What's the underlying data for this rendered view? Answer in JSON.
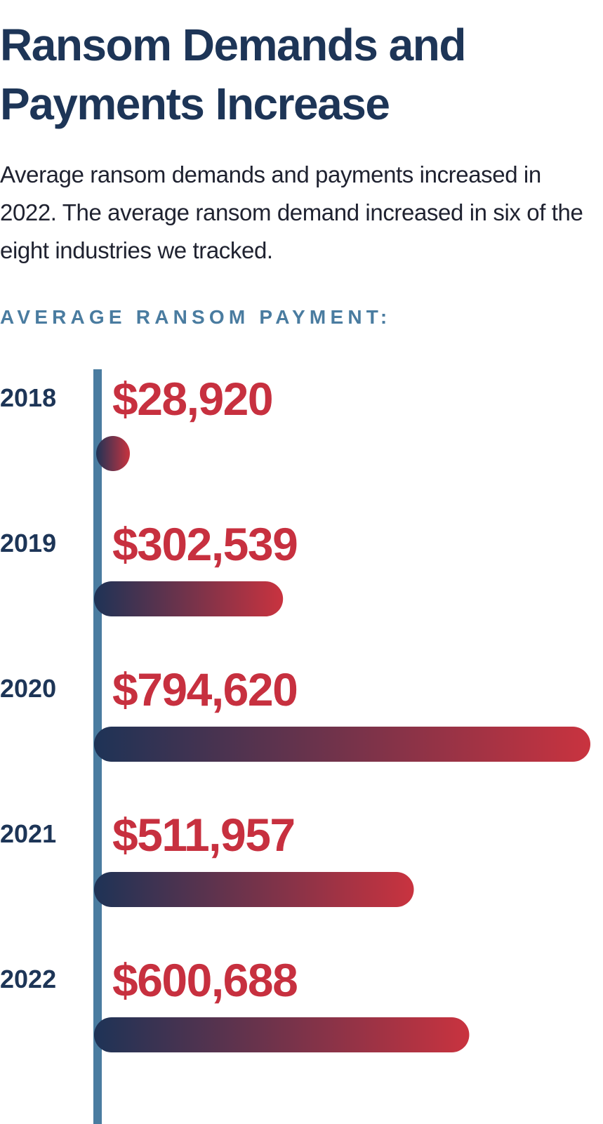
{
  "title": "Ransom Demands and Payments Increase",
  "intro": "Average ransom demands and payments increased in 2022. The average ransom demand increased in six of the eight industries we tracked.",
  "chart_data": {
    "type": "bar",
    "orientation": "horizontal",
    "title": "AVERAGE RANSOM PAYMENT:",
    "categories": [
      "2018",
      "2019",
      "2020",
      "2021",
      "2022"
    ],
    "values": [
      28920,
      302539,
      794620,
      511957,
      600688
    ],
    "value_labels": [
      "$28,920",
      "$302,539",
      "$794,620",
      "$511,957",
      "$600,688"
    ],
    "xlim": [
      0,
      794620
    ],
    "grid": false,
    "legend": "none"
  },
  "colors": {
    "title": "#1d3557",
    "heading": "#4a7ca0",
    "axis": "#4a7ca0",
    "value_text": "#c7303f",
    "bar_start": "#1e3356",
    "bar_end": "#c9333f",
    "year_text": "#1d3557"
  }
}
